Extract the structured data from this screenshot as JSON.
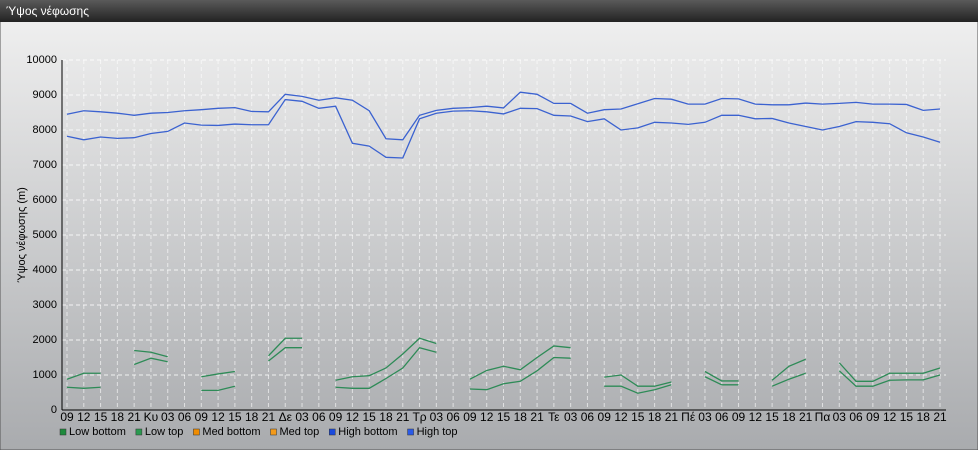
{
  "chart_data": {
    "type": "line",
    "title": "Ύψος νέφωσης",
    "y_label": "Ύψος νέφωσης (m)",
    "categories": [
      "09",
      "12",
      "15",
      "18",
      "21",
      "Κυ",
      "03",
      "06",
      "09",
      "12",
      "15",
      "18",
      "21",
      "Δε",
      "03",
      "06",
      "09",
      "12",
      "15",
      "18",
      "21",
      "Τρ",
      "03",
      "06",
      "09",
      "12",
      "15",
      "18",
      "21",
      "Τε",
      "03",
      "06",
      "09",
      "12",
      "15",
      "18",
      "21",
      "Πέ",
      "03",
      "06",
      "09",
      "12",
      "15",
      "18",
      "21",
      "Πα",
      "03",
      "06",
      "09",
      "12",
      "15",
      "18",
      "21"
    ],
    "series": [
      {
        "name": "Low bottom",
        "color": "#2e8b57",
        "legend_color": "#1e8a3c",
        "values": [
          650,
          620,
          650,
          null,
          1300,
          1480,
          1380,
          null,
          560,
          560,
          680,
          null,
          1400,
          1780,
          1780,
          null,
          650,
          620,
          620,
          900,
          1200,
          1780,
          1650,
          null,
          600,
          580,
          750,
          820,
          1120,
          1500,
          1480,
          null,
          680,
          680,
          480,
          580,
          720,
          null,
          950,
          720,
          720,
          null,
          680,
          880,
          1050,
          null,
          1120,
          680,
          680,
          850,
          860,
          860,
          1000
        ]
      },
      {
        "name": "Low top",
        "color": "#2e8b57",
        "legend_color": "#2a9a50",
        "values": [
          880,
          1050,
          1050,
          null,
          1700,
          1650,
          1520,
          null,
          950,
          1030,
          1100,
          null,
          1550,
          2050,
          2050,
          null,
          850,
          950,
          980,
          1200,
          1600,
          2050,
          1900,
          null,
          880,
          1130,
          1250,
          1150,
          1500,
          1830,
          1780,
          null,
          940,
          1000,
          680,
          680,
          800,
          null,
          1100,
          830,
          830,
          null,
          850,
          1250,
          1450,
          null,
          1350,
          820,
          820,
          1050,
          1050,
          1050,
          1200
        ]
      },
      {
        "name": "Med bottom",
        "color": "#f08c00",
        "legend_color": "#f08c00",
        "values": [
          null,
          null,
          null,
          null,
          null,
          null,
          null,
          null,
          null,
          null,
          null,
          null,
          null,
          null,
          null,
          null,
          null,
          null,
          null,
          null,
          null,
          null,
          null,
          null,
          null,
          null,
          null,
          null,
          null,
          null,
          null,
          null,
          null,
          null,
          null,
          null,
          null,
          null,
          null,
          null,
          null,
          null,
          null,
          null,
          null,
          null,
          null,
          null,
          null,
          null,
          null,
          null,
          null
        ]
      },
      {
        "name": "Med top",
        "color": "#f08c00",
        "legend_color": "#f39a1a",
        "values": [
          null,
          null,
          null,
          null,
          null,
          null,
          null,
          null,
          null,
          null,
          null,
          null,
          null,
          null,
          null,
          null,
          null,
          null,
          null,
          null,
          null,
          null,
          null,
          null,
          null,
          null,
          null,
          null,
          null,
          null,
          null,
          null,
          null,
          null,
          null,
          null,
          null,
          null,
          null,
          null,
          null,
          null,
          null,
          null,
          null,
          null,
          null,
          null,
          null,
          null,
          null,
          null,
          null
        ]
      },
      {
        "name": "High bottom",
        "color": "#3b62d0",
        "legend_color": "#1a4adc",
        "values": [
          7820,
          7720,
          7800,
          7760,
          7780,
          7900,
          7960,
          8200,
          8140,
          8130,
          8170,
          8150,
          8150,
          8870,
          8820,
          8620,
          8680,
          7620,
          7540,
          7220,
          7200,
          8320,
          8480,
          8540,
          8550,
          8520,
          8460,
          8620,
          8610,
          8420,
          8400,
          8240,
          8320,
          8000,
          8060,
          8220,
          8200,
          8160,
          8220,
          8420,
          8420,
          8320,
          8330,
          8200,
          8100,
          8000,
          8100,
          8240,
          8220,
          8180,
          7920,
          7800,
          7650
        ]
      },
      {
        "name": "High top",
        "color": "#3b62d0",
        "legend_color": "#2a5ae8",
        "values": [
          8450,
          8550,
          8520,
          8480,
          8420,
          8480,
          8500,
          8550,
          8580,
          8620,
          8640,
          8530,
          8520,
          9020,
          8960,
          8850,
          8920,
          8850,
          8550,
          7750,
          7720,
          8420,
          8560,
          8620,
          8640,
          8680,
          8630,
          9080,
          9020,
          8760,
          8760,
          8480,
          8580,
          8600,
          8750,
          8900,
          8880,
          8740,
          8740,
          8900,
          8890,
          8740,
          8720,
          8720,
          8770,
          8740,
          8760,
          8790,
          8740,
          8740,
          8730,
          8560,
          8600
        ]
      }
    ],
    "ylim": [
      0,
      10000
    ],
    "yticks": [
      0,
      1000,
      2000,
      3000,
      4000,
      5000,
      6000,
      7000,
      8000,
      9000,
      10000
    ],
    "grid": true,
    "legend": "bottom-left"
  }
}
